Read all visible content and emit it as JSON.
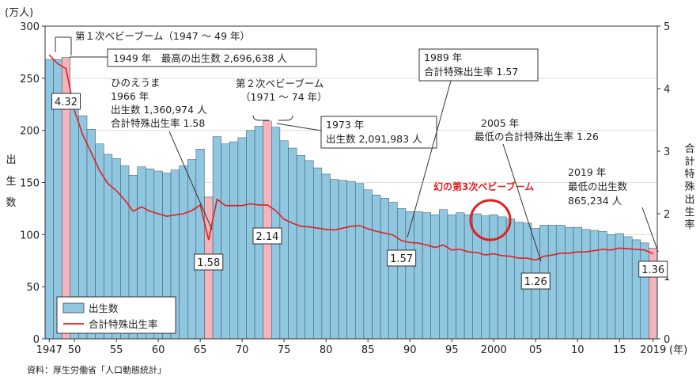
{
  "chart_data": {
    "type": "bar+line",
    "units_left": "(万人)",
    "units_x": "(年)",
    "ylabel_left": "出生数",
    "ylabel_right": "合計特殊出生率",
    "ylim_left": [
      0,
      300
    ],
    "ylim_right": [
      0,
      5
    ],
    "yticks_left": [
      0,
      50,
      100,
      150,
      200,
      250,
      300
    ],
    "yticks_right": [
      0,
      1,
      2,
      3,
      4,
      5
    ],
    "xtick_labels": [
      {
        "year": 1947,
        "label": "1947"
      },
      {
        "year": 1950,
        "label": "50"
      },
      {
        "year": 1955,
        "label": "55"
      },
      {
        "year": 1960,
        "label": "60"
      },
      {
        "year": 1965,
        "label": "65"
      },
      {
        "year": 1970,
        "label": "70"
      },
      {
        "year": 1975,
        "label": "75"
      },
      {
        "year": 1980,
        "label": "80"
      },
      {
        "year": 1985,
        "label": "85"
      },
      {
        "year": 1990,
        "label": "90"
      },
      {
        "year": 1995,
        "label": "95"
      },
      {
        "year": 2000,
        "label": "2000"
      },
      {
        "year": 2005,
        "label": "05"
      },
      {
        "year": 2010,
        "label": "10"
      },
      {
        "year": 2015,
        "label": "15"
      },
      {
        "year": 2019,
        "label": "2019"
      }
    ],
    "years": [
      1947,
      1948,
      1949,
      1950,
      1951,
      1952,
      1953,
      1954,
      1955,
      1956,
      1957,
      1958,
      1959,
      1960,
      1961,
      1962,
      1963,
      1964,
      1965,
      1966,
      1967,
      1968,
      1969,
      1970,
      1971,
      1972,
      1973,
      1974,
      1975,
      1976,
      1977,
      1978,
      1979,
      1980,
      1981,
      1982,
      1983,
      1984,
      1985,
      1986,
      1987,
      1988,
      1989,
      1990,
      1991,
      1992,
      1993,
      1994,
      1995,
      1996,
      1997,
      1998,
      1999,
      2000,
      2001,
      2002,
      2003,
      2004,
      2005,
      2006,
      2007,
      2008,
      2009,
      2010,
      2011,
      2012,
      2013,
      2014,
      2015,
      2016,
      2017,
      2018,
      2019
    ],
    "series": [
      {
        "name": "出生数",
        "type": "bar",
        "axis": "left",
        "color": "#8fc6e0",
        "values": [
          268,
          268,
          270,
          234,
          214,
          201,
          187,
          177,
          173,
          166,
          157,
          165,
          163,
          161,
          159,
          162,
          166,
          172,
          182,
          136,
          194,
          187,
          189,
          193,
          200,
          204,
          209,
          203,
          190,
          183,
          176,
          171,
          164,
          158,
          153,
          152,
          151,
          149,
          143,
          138,
          135,
          131,
          125,
          122,
          122,
          121,
          119,
          124,
          119,
          121,
          119,
          120,
          118,
          119,
          117,
          115,
          112,
          111,
          106,
          109,
          109,
          109,
          107,
          107,
          105,
          104,
          103,
          100,
          101,
          98,
          95,
          92,
          87
        ],
        "highlight_years": [
          1949,
          1966,
          1973,
          2019
        ],
        "highlight_color": "#f3b4bb"
      },
      {
        "name": "合計特殊出生率",
        "type": "line",
        "axis": "right",
        "color": "#e0201f",
        "values": [
          4.54,
          4.4,
          4.32,
          3.65,
          3.26,
          2.98,
          2.69,
          2.48,
          2.37,
          2.22,
          2.04,
          2.11,
          2.04,
          2.0,
          1.96,
          1.98,
          2.0,
          2.05,
          2.14,
          1.58,
          2.23,
          2.13,
          2.13,
          2.13,
          2.16,
          2.14,
          2.14,
          2.05,
          1.91,
          1.85,
          1.8,
          1.79,
          1.77,
          1.75,
          1.74,
          1.77,
          1.8,
          1.81,
          1.76,
          1.72,
          1.69,
          1.66,
          1.57,
          1.54,
          1.53,
          1.5,
          1.46,
          1.5,
          1.42,
          1.43,
          1.39,
          1.38,
          1.34,
          1.36,
          1.33,
          1.32,
          1.29,
          1.29,
          1.26,
          1.32,
          1.34,
          1.37,
          1.37,
          1.39,
          1.39,
          1.41,
          1.43,
          1.42,
          1.45,
          1.44,
          1.43,
          1.42,
          1.36
        ]
      }
    ],
    "value_labels": [
      {
        "year": 1949,
        "text": "4.32"
      },
      {
        "year": 1966,
        "text": "1.58"
      },
      {
        "year": 1973,
        "text": "2.14"
      },
      {
        "year": 1989,
        "text": "1.57"
      },
      {
        "year": 2005,
        "text": "1.26"
      },
      {
        "year": 2019,
        "text": "1.36"
      }
    ],
    "annotations": {
      "boom1": "第１次ベビーブーム（1947 ～ 49 年）",
      "max_births": "1949 年　最高の出生数 2,696,638 人",
      "hinoeuma": [
        "ひのえうま",
        "1966 年",
        "出生数 1,360,974 人",
        "合計特殊出生率 1.58"
      ],
      "boom2": [
        "第２次ベビーブーム",
        "（1971 ～ 74 年）"
      ],
      "births_1973": [
        "1973 年",
        "出生数 2,091,983 人"
      ],
      "tfr_1989": [
        "1989 年",
        "合計特殊出生率 1.57"
      ],
      "tfr_2005": [
        "2005 年",
        "最低の合計特殊出生率 1.26"
      ],
      "births_2019": [
        "2019 年",
        "最低の出生数",
        "865,234 人"
      ],
      "phantom_boom": "幻の第3次ベビーブーム"
    },
    "legend": [
      "出生数",
      "合計特殊出生率"
    ],
    "source": "資料：厚生労働省「人口動態統計」"
  }
}
